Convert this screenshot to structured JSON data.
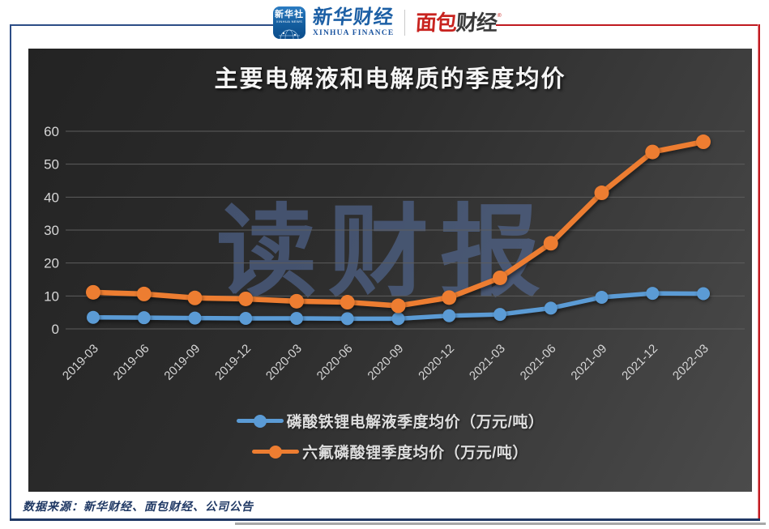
{
  "header": {
    "xinhua_badge": {
      "line1": "新华社",
      "line2": "XINHUA NEWS"
    },
    "xinhua_finance": {
      "cn": "新华财经",
      "en": "XINHUA FINANCE"
    },
    "bread_finance": {
      "part1": "面包",
      "part2": "财经",
      "reg": "®"
    }
  },
  "chart_data": {
    "type": "line",
    "title": "主要电解液和电解质的季度均价",
    "watermark": "读财报",
    "categories": [
      "2019-03",
      "2019-06",
      "2019-09",
      "2019-12",
      "2020-03",
      "2020-06",
      "2020-09",
      "2020-12",
      "2021-03",
      "2021-06",
      "2021-09",
      "2021-12",
      "2022-03"
    ],
    "series": [
      {
        "name": "磷酸铁锂电解液季度均价（万元/吨）",
        "color": "#5B9BD5",
        "values": [
          3.5,
          3.4,
          3.3,
          3.2,
          3.2,
          3.1,
          3.1,
          4.0,
          4.4,
          6.3,
          9.6,
          10.8,
          10.7
        ]
      },
      {
        "name": "六氟磷酸锂季度均价（万元/吨）",
        "color": "#ED7D31",
        "values": [
          11.1,
          10.6,
          9.4,
          9.1,
          8.4,
          8.1,
          7.0,
          9.5,
          15.5,
          26.0,
          41.3,
          53.7,
          56.8
        ]
      }
    ],
    "ylim": [
      0,
      60
    ],
    "yticks": [
      0,
      10,
      20,
      30,
      40,
      50,
      60
    ],
    "grid": true,
    "legend_position": "bottom",
    "plot_bg": "#2e2e2e",
    "gridline_color": "#5d5d5d",
    "tick_label_color": "#d6d6d6"
  },
  "footer": {
    "source": "数据来源：新华财经、面包财经、公司公告"
  },
  "colors": {
    "accent_blue": "#5B9BD5",
    "accent_orange": "#ED7D31",
    "frame_navy": "#1F3864",
    "frame_red": "#C01A20"
  }
}
